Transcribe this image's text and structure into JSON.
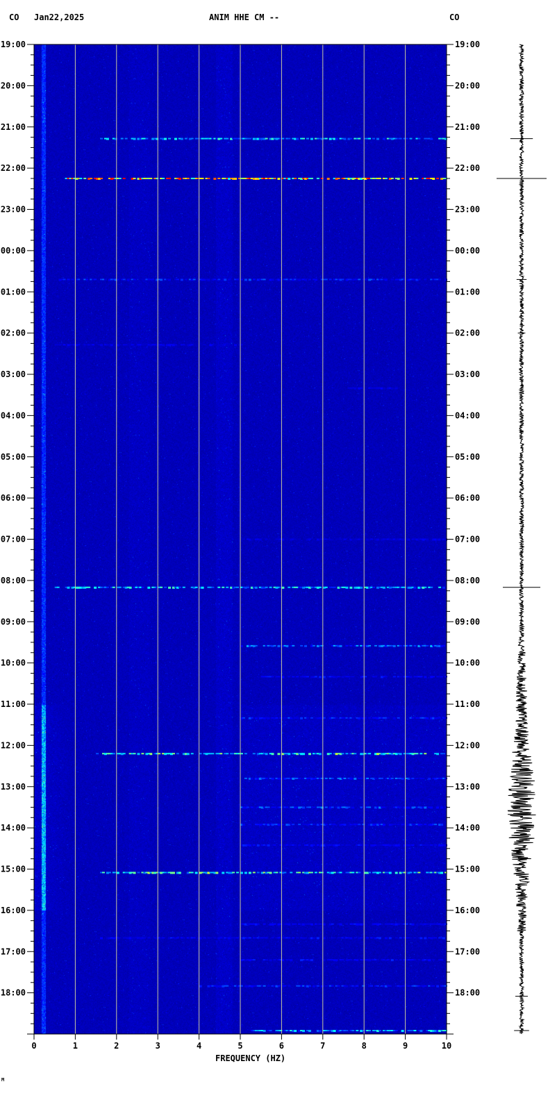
{
  "header": {
    "left_network": "CO",
    "date": "Jan22,2025",
    "station": "ANIM HHE CM --",
    "right_network": "CO"
  },
  "footer_mark": "M",
  "chart_data": {
    "type": "heatmap",
    "title": "ANIM HHE CM --",
    "xlabel": "FREQUENCY (HZ)",
    "xlim": [
      0,
      10
    ],
    "x_ticks": [
      "0",
      "1",
      "2",
      "3",
      "4",
      "5",
      "6",
      "7",
      "8",
      "9",
      "10"
    ],
    "y_ticks": [
      "19:00",
      "20:00",
      "21:00",
      "22:00",
      "23:00",
      "00:00",
      "01:00",
      "02:00",
      "03:00",
      "04:00",
      "05:00",
      "06:00",
      "07:00",
      "08:00",
      "09:00",
      "10:00",
      "11:00",
      "12:00",
      "13:00",
      "14:00",
      "15:00",
      "16:00",
      "17:00",
      "18:00"
    ],
    "time_range": [
      "19:00",
      "19:00"
    ],
    "grid": "vertical lines at each Hz",
    "colormap": [
      "#00008c",
      "#0000ff",
      "#00ffff",
      "#ffff00",
      "#ff0000"
    ],
    "noisy_period": [
      "11:00",
      "16:00"
    ],
    "events": [
      {
        "time": "21:17",
        "fmin": 1.6,
        "fmax": 10,
        "level": 0.6
      },
      {
        "time": "22:15",
        "fmin": 0.7,
        "fmax": 10,
        "level": 0.95
      },
      {
        "time": "00:42",
        "fmin": 0.5,
        "fmax": 10,
        "level": 0.4
      },
      {
        "time": "02:17",
        "fmin": 0.5,
        "fmax": 5,
        "level": 0.3
      },
      {
        "time": "03:20",
        "fmin": 7.6,
        "fmax": 8.8,
        "level": 0.3
      },
      {
        "time": "07:00",
        "fmin": 5,
        "fmax": 10,
        "level": 0.3
      },
      {
        "time": "08:10",
        "fmin": 0.5,
        "fmax": 10,
        "level": 0.6
      },
      {
        "time": "09:35",
        "fmin": 5,
        "fmax": 10,
        "level": 0.5
      },
      {
        "time": "10:20",
        "fmin": 5.5,
        "fmax": 10,
        "level": 0.35
      },
      {
        "time": "11:20",
        "fmin": 5,
        "fmax": 10,
        "level": 0.4
      },
      {
        "time": "12:12",
        "fmin": 1.5,
        "fmax": 10,
        "level": 0.7
      },
      {
        "time": "12:48",
        "fmin": 5,
        "fmax": 10,
        "level": 0.45
      },
      {
        "time": "13:30",
        "fmin": 5,
        "fmax": 10,
        "level": 0.45
      },
      {
        "time": "13:55",
        "fmin": 5,
        "fmax": 10,
        "level": 0.4
      },
      {
        "time": "14:25",
        "fmin": 5,
        "fmax": 10,
        "level": 0.35
      },
      {
        "time": "15:05",
        "fmin": 1.6,
        "fmax": 10,
        "level": 0.7
      },
      {
        "time": "16:20",
        "fmin": 5,
        "fmax": 10,
        "level": 0.35
      },
      {
        "time": "16:40",
        "fmin": 1.6,
        "fmax": 10,
        "level": 0.35
      },
      {
        "time": "17:12",
        "fmin": 5,
        "fmax": 10,
        "level": 0.35
      },
      {
        "time": "17:50",
        "fmin": 4,
        "fmax": 10,
        "level": 0.4
      },
      {
        "time": "18:55",
        "fmin": 5.2,
        "fmax": 10,
        "level": 0.6
      }
    ],
    "seismogram_spikes": [
      {
        "time": "21:17",
        "amplitude": 0.45
      },
      {
        "time": "22:15",
        "amplitude": 1.0
      },
      {
        "time": "00:42",
        "amplitude": 0.2
      },
      {
        "time": "02:00",
        "amplitude": 0.15
      },
      {
        "time": "08:10",
        "amplitude": 0.75
      },
      {
        "time": "18:05",
        "amplitude": 0.25
      },
      {
        "time": "18:55",
        "amplitude": 0.3
      }
    ]
  }
}
